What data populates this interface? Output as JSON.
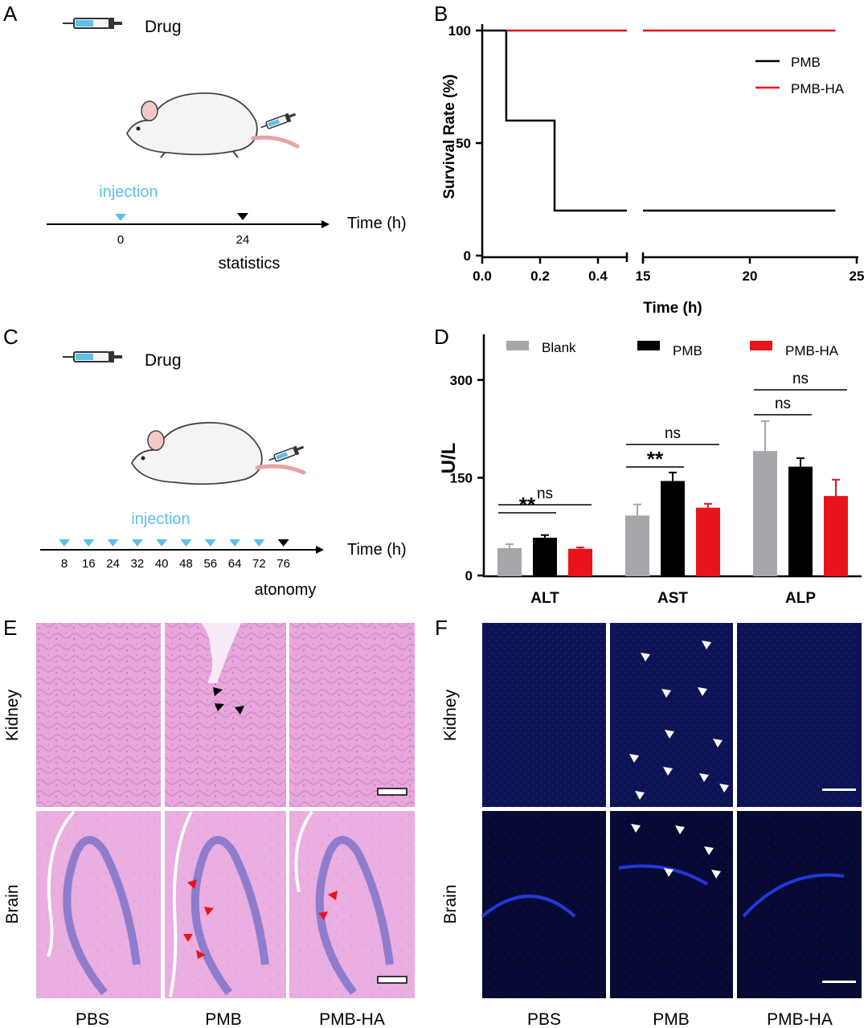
{
  "panel_labels": {
    "a": "A",
    "b": "B",
    "c": "C",
    "d": "D",
    "e": "E",
    "f": "F"
  },
  "panel_a": {
    "drug_label": "Drug",
    "injection_label": "injection",
    "axis_label": "Time (h)",
    "ticks": [
      "0",
      "24"
    ],
    "statistics_label": "statistics"
  },
  "panel_c": {
    "drug_label": "Drug",
    "injection_label": "injection",
    "axis_label": "Time (h)",
    "ticks": [
      "8",
      "16",
      "24",
      "32",
      "40",
      "48",
      "56",
      "64",
      "72",
      "76"
    ],
    "atonomy_label": "atonomy"
  },
  "panel_e": {
    "row_labels": [
      "Kidney",
      "Brain"
    ],
    "col_labels": [
      "PBS",
      "PMB",
      "PMB-HA"
    ]
  },
  "panel_f": {
    "row_labels": [
      "Kidney",
      "Brain"
    ],
    "col_labels": [
      "PBS",
      "PMB",
      "PMB-HA"
    ]
  },
  "colors": {
    "injection_blue": "#5bc0eb",
    "pmb": "#000000",
    "pmb_ha": "#e8141b",
    "blank": "#a6a6ab",
    "he_stain": "#e8a3d8",
    "dapi": "#0c1250"
  },
  "chart_data": [
    {
      "id": "B",
      "type": "line",
      "title": "",
      "xlabel": "Time (h)",
      "ylabel": "Survival Rate (%)",
      "broken_x_axis": true,
      "segments": [
        {
          "xlim": [
            0,
            0.5
          ]
        },
        {
          "xlim": [
            15,
            25
          ]
        }
      ],
      "x_ticks_left": [
        "0.0",
        "0.2",
        "0.4"
      ],
      "x_ticks_right": [
        "15",
        "20",
        "25"
      ],
      "y_ticks": [
        "0",
        "50",
        "100"
      ],
      "ylim": [
        0,
        100
      ],
      "legend_position": "top-right",
      "series": [
        {
          "name": "PMB",
          "color": "#000000",
          "step": true,
          "x": [
            0,
            0.083,
            0.083,
            0.25,
            0.25,
            24
          ],
          "y": [
            100,
            100,
            60,
            60,
            20,
            20
          ]
        },
        {
          "name": "PMB-HA",
          "color": "#e8141b",
          "step": true,
          "x": [
            0.083,
            24
          ],
          "y": [
            100,
            100
          ]
        }
      ]
    },
    {
      "id": "D",
      "type": "bar",
      "title": "",
      "xlabel": "",
      "ylabel": "U/L",
      "categories": [
        "ALT",
        "AST",
        "ALP"
      ],
      "y_ticks": [
        "0",
        "150",
        "300"
      ],
      "ylim": [
        0,
        370
      ],
      "legend_position": "top",
      "series": [
        {
          "name": "Blank",
          "color": "#a6a6ab",
          "values": [
            42,
            92,
            191
          ],
          "errors": [
            6,
            17,
            46
          ]
        },
        {
          "name": "PMB",
          "color": "#000000",
          "values": [
            58,
            145,
            167
          ],
          "errors": [
            4,
            13,
            13
          ]
        },
        {
          "name": "PMB-HA",
          "color": "#e8141b",
          "values": [
            41,
            104,
            122
          ],
          "errors": [
            2,
            6,
            25
          ]
        }
      ],
      "significance": [
        {
          "category": "ALT",
          "compare": "Blank-PMB",
          "label": "**"
        },
        {
          "category": "ALT",
          "compare": "Blank-PMB-HA",
          "label": "ns"
        },
        {
          "category": "AST",
          "compare": "Blank-PMB",
          "label": "**"
        },
        {
          "category": "AST",
          "compare": "Blank-PMB-HA",
          "label": "ns"
        },
        {
          "category": "ALP",
          "compare": "Blank-PMB",
          "label": "ns"
        },
        {
          "category": "ALP",
          "compare": "Blank-PMB-HA",
          "label": "ns"
        }
      ]
    }
  ]
}
